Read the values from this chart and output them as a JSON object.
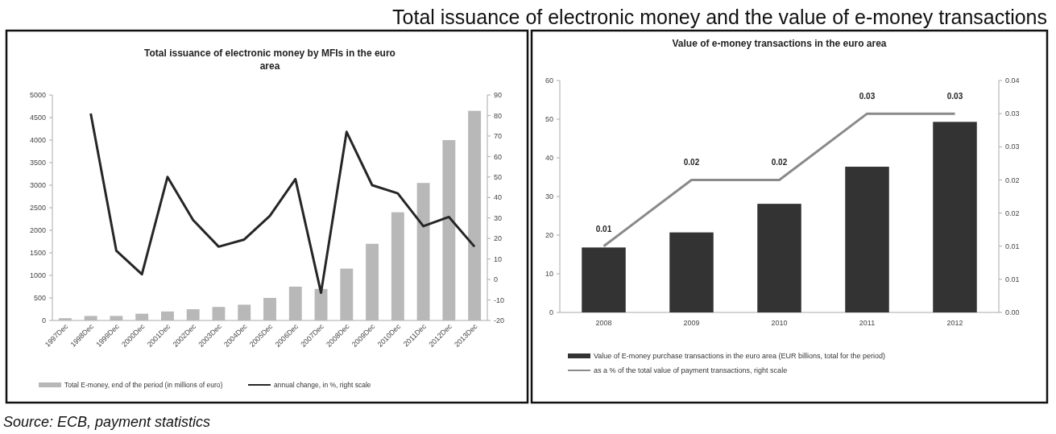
{
  "chart_data": [
    {
      "type": "other",
      "title": "Total issuance of electronic money and the value of e-money transactions",
      "annotations": [
        "Source: ECB, payment statistics"
      ]
    },
    {
      "type": "bar",
      "title": "Total issuance of electronic money by MFIs in the euro area",
      "categories": [
        "1997Dec",
        "1998Dec",
        "1999Dec",
        "2000Dec",
        "2001Dec",
        "2002Dec",
        "2003Dec",
        "2004Dec",
        "2005Dec",
        "2006Dec",
        "2007Dec",
        "2008Dec",
        "2009Dec",
        "2010Dec",
        "2011Dec",
        "2012Dec",
        "2013Dec"
      ],
      "series": [
        {
          "name": "Total E-money, end of the period (in millions of euro)",
          "type": "bar",
          "color": "#b8b8b8",
          "values": [
            50,
            100,
            100,
            150,
            200,
            250,
            300,
            350,
            500,
            750,
            700,
            1150,
            1700,
            2400,
            3050,
            4000,
            4650
          ]
        },
        {
          "name": "annual change, in %, right scale",
          "type": "line",
          "axis": "y2",
          "color": "#262626",
          "values": [
            null,
            81,
            14,
            2.5,
            50,
            29,
            16,
            19.5,
            31,
            49,
            -6.5,
            72,
            46,
            42,
            26,
            30.5,
            16
          ]
        }
      ],
      "ylim": [
        0,
        5000
      ],
      "yticks": [
        0,
        500,
        1000,
        1500,
        2000,
        2500,
        3000,
        3500,
        4000,
        4500,
        5000
      ],
      "y2lim": [
        -20,
        90
      ],
      "y2ticks": [
        -20,
        -10,
        0,
        10,
        20,
        30,
        40,
        50,
        60,
        70,
        80,
        90
      ],
      "legend": "bottom",
      "marker": "none",
      "grid": false
    },
    {
      "type": "bar",
      "title": "Value of e-money transactions in the euro area",
      "categories": [
        "2008",
        "2009",
        "2010",
        "2011",
        "2012"
      ],
      "series": [
        {
          "name": "Value of E-money purchase transactions in the euro area (EUR billions, total for the period)",
          "type": "bar",
          "color": "#333333",
          "values": [
            16.8,
            20.7,
            28.1,
            37.7,
            49.3
          ]
        },
        {
          "name": "as a % of the total value of payment transactions, right scale",
          "type": "line",
          "axis": "y2",
          "color": "#8a8a8a",
          "values": [
            0.01,
            0.02,
            0.02,
            0.03,
            0.03
          ],
          "value_labels": [
            "0.01",
            "0.02",
            "0.02",
            "0.03",
            "0.03"
          ]
        }
      ],
      "ylim": [
        0,
        60
      ],
      "yticks": [
        0,
        10,
        20,
        30,
        40,
        50,
        60
      ],
      "y2lim": [
        0,
        0.035
      ],
      "y2ticks": [
        {
          "value": 0,
          "label": "0.00"
        },
        {
          "value": 0.005,
          "label": "0.01"
        },
        {
          "value": 0.01,
          "label": "0.01"
        },
        {
          "value": 0.015,
          "label": "0.02"
        },
        {
          "value": 0.02,
          "label": "0.02"
        },
        {
          "value": 0.025,
          "label": "0.03"
        },
        {
          "value": 0.03,
          "label": "0.03"
        },
        {
          "value": 0.035,
          "label": "0.04"
        }
      ],
      "legend": "bottom",
      "marker": "none",
      "grid": false
    }
  ]
}
